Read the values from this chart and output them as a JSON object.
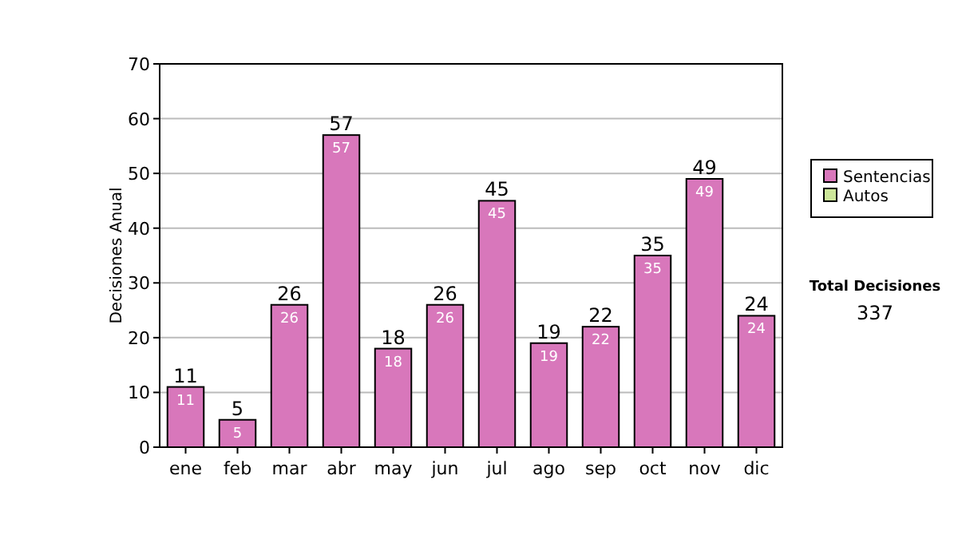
{
  "chart_data": {
    "type": "bar",
    "stacked": true,
    "ylabel": "Decisiones Anual",
    "categories": [
      "ene",
      "feb",
      "mar",
      "abr",
      "may",
      "jun",
      "jul",
      "ago",
      "sep",
      "oct",
      "nov",
      "dic"
    ],
    "series": [
      {
        "name": "Sentencias",
        "color": "#d877bb",
        "values": [
          11,
          5,
          26,
          57,
          18,
          26,
          45,
          19,
          22,
          35,
          49,
          24
        ],
        "value_labels": [
          "11",
          "5",
          "26",
          "57",
          "18",
          "26",
          "45",
          "19",
          "22",
          "35",
          "49",
          "24"
        ]
      },
      {
        "name": "Autos",
        "color": "#cce699",
        "values": [
          0,
          0,
          0,
          0,
          0,
          0,
          0,
          0,
          0,
          0,
          0,
          0
        ]
      }
    ],
    "totals": [
      "11",
      "5",
      "26",
      "57",
      "18",
      "26",
      "45",
      "19",
      "22",
      "35",
      "49",
      "24"
    ],
    "ylim": [
      0,
      70
    ],
    "yticks": [
      0,
      10,
      20,
      30,
      40,
      50,
      60,
      70
    ],
    "grid": "y",
    "legend": "right",
    "annotations": [
      "Total Decisiones",
      "337"
    ]
  }
}
